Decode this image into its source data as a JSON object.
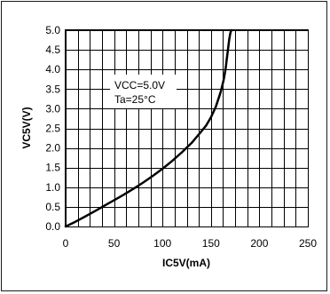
{
  "chart_data": {
    "type": "line",
    "title": "",
    "xlabel": "IC5V(mA)",
    "ylabel": "VC5V(V)",
    "xlim": [
      0,
      250
    ],
    "ylim": [
      0,
      5.0
    ],
    "x_ticks": [
      "0",
      "50",
      "100",
      "150",
      "200",
      "250"
    ],
    "y_ticks": [
      "0.0",
      "0.5",
      "1.0",
      "1.5",
      "2.0",
      "2.5",
      "3.0",
      "3.5",
      "4.0",
      "4.5",
      "5.0"
    ],
    "x_minor_step": 12.5,
    "grid": true,
    "annotation": [
      "VCC=5.0V",
      "Ta=25°C"
    ],
    "series": [
      {
        "color": "#000000",
        "x": [
          0,
          10,
          20,
          30,
          40,
          50,
          60,
          70,
          80,
          90,
          100,
          110,
          120,
          130,
          140,
          145,
          150,
          155,
          160,
          163,
          165,
          166,
          167,
          168,
          169,
          170,
          171
        ],
        "y": [
          0.0,
          0.12,
          0.25,
          0.39,
          0.53,
          0.67,
          0.81,
          0.96,
          1.12,
          1.29,
          1.47,
          1.67,
          1.89,
          2.13,
          2.42,
          2.57,
          2.78,
          3.05,
          3.42,
          3.72,
          4.0,
          4.2,
          4.4,
          4.6,
          4.78,
          4.92,
          5.0
        ]
      }
    ]
  }
}
